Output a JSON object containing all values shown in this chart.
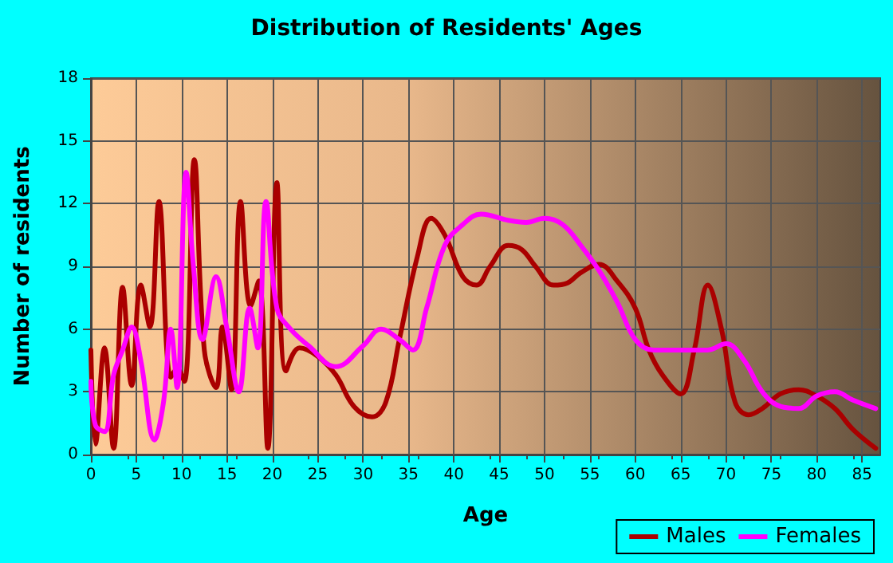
{
  "chart_data": {
    "type": "line",
    "title": "Distribution of Residents' Ages",
    "xlabel": "Age",
    "ylabel": "Number of residents",
    "xlim": [
      0,
      87
    ],
    "xticks": [
      0,
      5,
      10,
      15,
      20,
      25,
      30,
      35,
      40,
      45,
      50,
      55,
      60,
      65,
      70,
      75,
      80,
      85
    ],
    "ylim": [
      0,
      18
    ],
    "yticks": [
      0,
      3,
      6,
      9,
      12,
      15,
      18
    ],
    "grid": true,
    "legend": "bottom right",
    "marker": "none",
    "line_style": "solid",
    "series": [
      {
        "name": "Males",
        "color": "#aa0000",
        "x": [
          0,
          0.5,
          1.5,
          2.5,
          3.5,
          4.5,
          5.5,
          6.5,
          7.5,
          8.8,
          9.5,
          10.3,
          11.4,
          12.5,
          13.8,
          14.5,
          15.5,
          16.5,
          17.6,
          18.5,
          19.5,
          20.5,
          21.5,
          23,
          25,
          27,
          29,
          31,
          32.5,
          34,
          36,
          37.5,
          39,
          41,
          42.5,
          44,
          46,
          47.5,
          49,
          51,
          52.5,
          54,
          56,
          58,
          60,
          61.5,
          63,
          65,
          66.5,
          68,
          69.5,
          71,
          72.5,
          74,
          76,
          78,
          80,
          82,
          84,
          86.5
        ],
        "values": [
          5,
          0.5,
          5.1,
          0.3,
          8,
          3.3,
          8.1,
          6.1,
          12.1,
          3.7,
          4.1,
          3.5,
          14.1,
          5,
          3.2,
          6.1,
          3.1,
          12.1,
          7.1,
          8.3,
          0.3,
          13,
          4,
          5.1,
          4.7,
          3.8,
          2.3,
          1.8,
          2.5,
          5.5,
          9.5,
          11.3,
          10.5,
          8.5,
          8.1,
          9,
          10,
          9.8,
          9,
          8.1,
          8.2,
          8.7,
          9.1,
          8.3,
          7,
          5,
          3.8,
          2.9,
          5,
          8.1,
          6,
          2.5,
          1.9,
          2.2,
          2.9,
          3.1,
          2.8,
          2.2,
          1.2,
          0.3
        ]
      },
      {
        "name": "Females",
        "color": "#ff00ff",
        "x": [
          0,
          0.5,
          1.5,
          2.5,
          3.5,
          4.5,
          5.5,
          7,
          8,
          8.8,
          9.5,
          10.5,
          11.3,
          12.3,
          13.8,
          15,
          16.3,
          17.5,
          18.4,
          19.3,
          20.5,
          22,
          24,
          27,
          30,
          32,
          34,
          35.5,
          37,
          39,
          41,
          43,
          46,
          48,
          50,
          52,
          54,
          56,
          58,
          60,
          62,
          65,
          68,
          70,
          72,
          74,
          76,
          78,
          80,
          82,
          84,
          86.5
        ],
        "values": [
          3.5,
          1.4,
          1.1,
          3.8,
          5,
          6.1,
          4.5,
          0.7,
          2.5,
          6,
          3.2,
          13.5,
          9,
          5.5,
          8.5,
          6,
          3,
          7,
          5.1,
          12.1,
          7,
          6,
          5.2,
          4.2,
          5.2,
          6,
          5.5,
          5,
          7,
          10,
          11,
          11.5,
          11.2,
          11.1,
          11.3,
          11,
          10,
          8.8,
          7.3,
          5.5,
          5,
          5,
          5,
          5.3,
          4.5,
          3,
          2.3,
          2.2,
          2.8,
          3,
          2.6,
          2.2
        ]
      }
    ]
  }
}
